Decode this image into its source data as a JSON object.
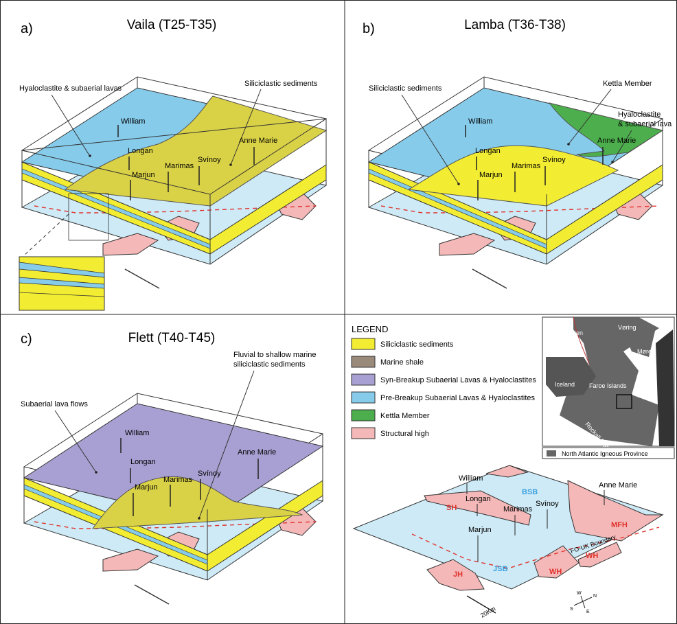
{
  "panels": {
    "a": {
      "letter": "a)",
      "title": "Vaila (T25-T35)",
      "callout_left": "Hyaloclastite & subaerial lavas",
      "callout_right": "Siliciclastic sediments"
    },
    "b": {
      "letter": "b)",
      "title": "Lamba (T36-T38)",
      "callout_left": "Siliciclastic sediments",
      "callout_kettla": "Kettla Member",
      "callout_right_1": "Hyaloclastite",
      "callout_right_2": "& subaerial lava"
    },
    "c": {
      "letter": "c)",
      "title": "Flett (T40-T45)",
      "callout_left": "Subaerial lava flows",
      "callout_right_1": "Fluvial to shallow marine",
      "callout_right_2": "siliciclastic sediments"
    }
  },
  "wells": [
    "William",
    "Longan",
    "Marjun",
    "Marimas",
    "Svínoy",
    "Anne Marie"
  ],
  "legend": {
    "title": "LEGEND",
    "items": [
      {
        "label": "Siliciclastic sediments",
        "color": "#f2ec32"
      },
      {
        "label": "Marine shale",
        "color": "#9a8a7a"
      },
      {
        "label": "Syn-Breakup Subaerial Lavas & Hyaloclastites",
        "color": "#a8a0d2"
      },
      {
        "label": "Pre-Breakup Subaerial Lavas & Hyaloclastites",
        "color": "#86cbea"
      },
      {
        "label": "Kettla Member",
        "color": "#4cae4c"
      },
      {
        "label": "Structural high",
        "color": "#f4b8b8"
      }
    ]
  },
  "inset_map": {
    "labels": [
      "Jan Mayen",
      "Vøring",
      "Møre",
      "Iceland",
      "Faroe Islands",
      "Rockall Plateau"
    ],
    "legend_label": "North Atlantic Igneous Province"
  },
  "location_map": {
    "basins": [
      "BSB",
      "JSB"
    ],
    "highs": [
      "SH",
      "MFH",
      "WH",
      "WH",
      "JH"
    ],
    "boundary_label": "FO-UK Boundary",
    "scale_label": "20Km",
    "compass": [
      "N",
      "E",
      "S",
      "W"
    ]
  },
  "colors": {
    "yellow": "#f2ec32",
    "yellow_sub": "#d9d146",
    "blue": "#86cbea",
    "pale_blue": "#cdeaf6",
    "purple": "#a8a0d2",
    "green": "#4cae4c",
    "pink": "#f4b8b8",
    "red": "#e0322c"
  }
}
